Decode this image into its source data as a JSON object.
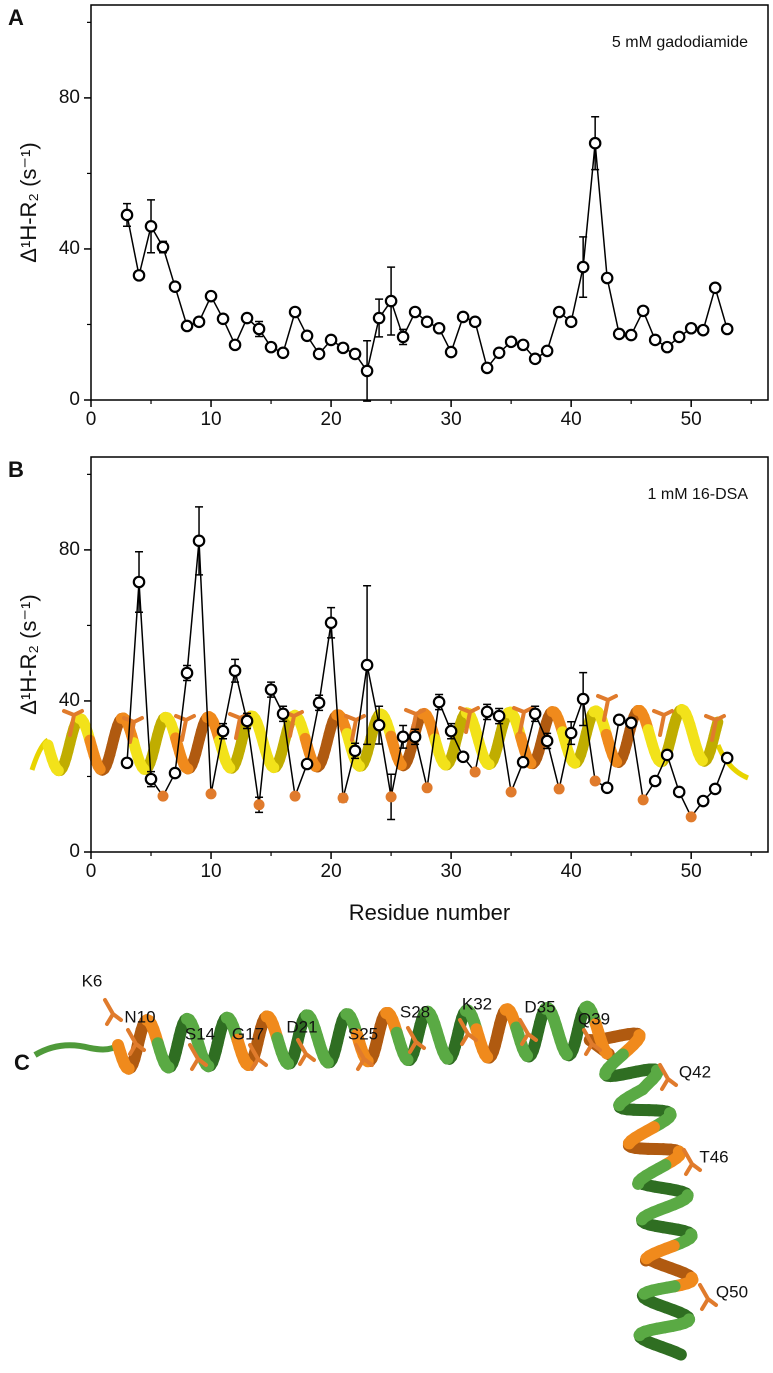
{
  "chart_data": [
    {
      "type": "line",
      "panel_label": "A",
      "annotation": "5 mM gadodiamide",
      "ylabel": "Δ¹H-R₂ (s⁻¹)",
      "x": [
        3,
        4,
        5,
        6,
        7,
        8,
        9,
        10,
        11,
        12,
        13,
        14,
        15,
        16,
        17,
        18,
        19,
        20,
        21,
        22,
        23,
        24,
        25,
        26,
        27,
        28,
        29,
        30,
        31,
        32,
        33,
        34,
        35,
        36,
        37,
        38,
        39,
        40,
        41,
        42,
        43,
        44,
        45,
        46,
        47,
        48,
        49,
        50,
        51,
        52,
        53
      ],
      "values": [
        49,
        33,
        46,
        40.5,
        30,
        19.6,
        20.7,
        27.5,
        21.5,
        14.6,
        21.7,
        18.8,
        14,
        12.5,
        23.3,
        17,
        12.2,
        15.9,
        13.8,
        12.2,
        7.7,
        21.7,
        26.2,
        16.7,
        23.3,
        20.7,
        19,
        12.7,
        22,
        20.7,
        8.5,
        12.5,
        15.4,
        14.6,
        10.9,
        13,
        23.3,
        20.7,
        35.2,
        68,
        32.3,
        17.5,
        17.2,
        23.6,
        15.9,
        14,
        16.7,
        19,
        18.5,
        29.7,
        18.8
      ],
      "errors": [
        3,
        null,
        7,
        1.5,
        null,
        null,
        null,
        1,
        null,
        null,
        null,
        2,
        null,
        null,
        1,
        null,
        null,
        null,
        null,
        null,
        8,
        5,
        9,
        2,
        null,
        null,
        null,
        null,
        null,
        null,
        null,
        null,
        null,
        null,
        null,
        null,
        1,
        1,
        8,
        7,
        null,
        null,
        null,
        null,
        null,
        null,
        null,
        null,
        null,
        null,
        null
      ],
      "color": "#000000",
      "marker_fill": "#ffffff",
      "xlim": [
        0,
        56.4
      ],
      "xticks": [
        0,
        10,
        20,
        30,
        40,
        50
      ],
      "xminor": [
        5,
        15,
        25,
        35,
        45,
        55
      ],
      "ylim": [
        0,
        104.6
      ],
      "yticks": [
        0,
        40,
        80
      ],
      "yminor": [
        20,
        60,
        100
      ]
    },
    {
      "type": "line",
      "panel_label": "B",
      "annotation": "1 mM 16-DSA",
      "ylabel": "Δ¹H-R₂ (s⁻¹)",
      "xlabel": "Residue number",
      "x": [
        3,
        4,
        5,
        6,
        7,
        8,
        9,
        10,
        11,
        12,
        13,
        14,
        15,
        16,
        17,
        18,
        19,
        20,
        21,
        22,
        23,
        24,
        25,
        26,
        27,
        28,
        29,
        30,
        31,
        32,
        33,
        34,
        35,
        36,
        37,
        38,
        39,
        40,
        41,
        42,
        43,
        44,
        45,
        46,
        47,
        48,
        49,
        50,
        51,
        52,
        53
      ],
      "values": [
        23.6,
        71.5,
        19.3,
        14.8,
        20.9,
        47.4,
        82.4,
        15.4,
        32,
        48,
        34.7,
        12.5,
        43,
        36.6,
        14.8,
        23.3,
        39.5,
        60.7,
        14.3,
        26.8,
        49.5,
        33.6,
        14.6,
        30.5,
        30.5,
        17,
        39.7,
        32,
        25.2,
        21.2,
        37.1,
        36,
        15.9,
        23.8,
        36.6,
        29.4,
        16.7,
        31.5,
        40.5,
        18.8,
        17,
        35,
        34.2,
        13.8,
        18.8,
        25.7,
        15.9,
        9.3,
        13.5,
        16.7,
        24.9
      ],
      "errors": [
        null,
        8,
        2,
        null,
        null,
        2,
        9,
        null,
        2,
        3,
        2,
        2,
        2,
        2,
        null,
        null,
        2,
        4,
        1,
        2,
        21,
        5,
        6,
        3,
        2,
        null,
        2,
        2,
        1,
        null,
        2,
        2,
        null,
        null,
        2,
        2,
        null,
        3,
        7,
        null,
        null,
        null,
        1,
        null,
        null,
        null,
        null,
        null,
        null,
        null,
        null
      ],
      "color": "#000000",
      "marker_fill": "#ffffff",
      "highlighted": [
        6,
        10,
        14,
        17,
        21,
        25,
        28,
        32,
        35,
        39,
        42,
        46,
        50
      ],
      "highlight_color": "#e07b2c",
      "xlim": [
        0,
        56.4
      ],
      "xticks": [
        0,
        10,
        20,
        30,
        40,
        50
      ],
      "xminor": [
        5,
        15,
        25,
        35,
        45,
        55
      ],
      "ylim": [
        0,
        104.6
      ],
      "yticks": [
        0,
        40,
        80
      ],
      "yminor": [
        20,
        60,
        100
      ]
    }
  ],
  "panel_c": {
    "panel_label": "C",
    "residue_labels": [
      "K6",
      "N10",
      "S14",
      "G17",
      "D21",
      "S25",
      "S28",
      "K32",
      "D35",
      "Q39",
      "Q42",
      "T46",
      "Q50"
    ]
  }
}
